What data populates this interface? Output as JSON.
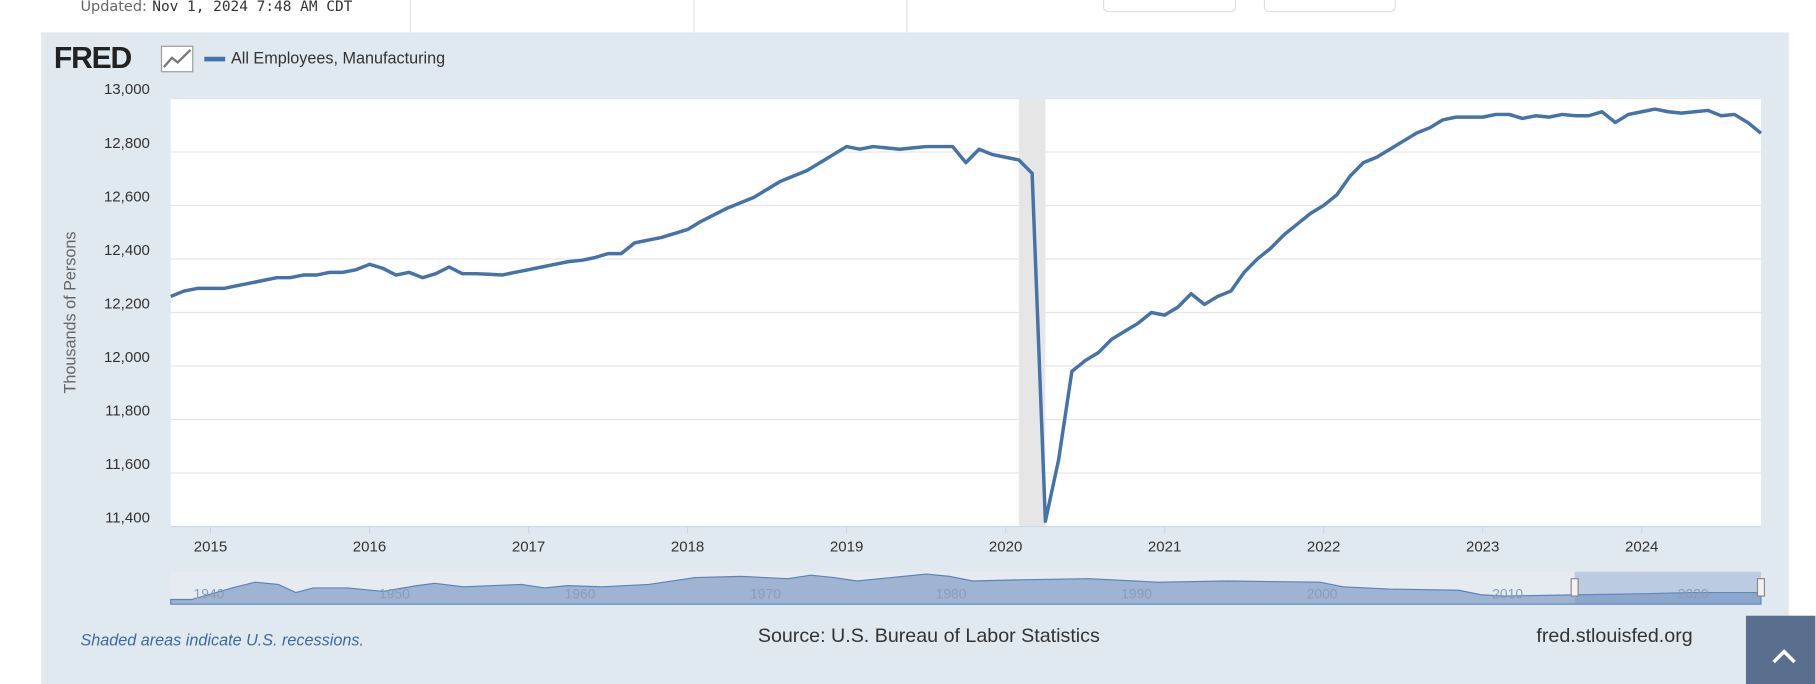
{
  "header": {
    "updated_label": "Updated:",
    "updated": "Nov 1, 2024 7:48 AM CDT"
  },
  "logo": "FRED",
  "chart_data": {
    "type": "line",
    "y_axis_label": "Thousands of Persons",
    "x": [
      "2014-10",
      "2014-11",
      "2014-12",
      "2015-01",
      "2015-02",
      "2015-03",
      "2015-04",
      "2015-05",
      "2015-06",
      "2015-07",
      "2015-08",
      "2015-09",
      "2015-10",
      "2015-11",
      "2015-12",
      "2016-01",
      "2016-02",
      "2016-03",
      "2016-04",
      "2016-05",
      "2016-06",
      "2016-07",
      "2016-08",
      "2016-09",
      "2016-10",
      "2016-11",
      "2016-12",
      "2017-01",
      "2017-02",
      "2017-03",
      "2017-04",
      "2017-05",
      "2017-06",
      "2017-07",
      "2017-08",
      "2017-09",
      "2017-10",
      "2017-11",
      "2017-12",
      "2018-01",
      "2018-02",
      "2018-03",
      "2018-04",
      "2018-05",
      "2018-06",
      "2018-07",
      "2018-08",
      "2018-09",
      "2018-10",
      "2018-11",
      "2018-12",
      "2019-01",
      "2019-02",
      "2019-03",
      "2019-04",
      "2019-05",
      "2019-06",
      "2019-07",
      "2019-08",
      "2019-09",
      "2019-10",
      "2019-11",
      "2019-12",
      "2020-01",
      "2020-02",
      "2020-03",
      "2020-04",
      "2020-05",
      "2020-06",
      "2020-07",
      "2020-08",
      "2020-09",
      "2020-10",
      "2020-11",
      "2020-12",
      "2021-01",
      "2021-02",
      "2021-03",
      "2021-04",
      "2021-05",
      "2021-06",
      "2021-07",
      "2021-08",
      "2021-09",
      "2021-10",
      "2021-11",
      "2021-12",
      "2022-01",
      "2022-02",
      "2022-03",
      "2022-04",
      "2022-05",
      "2022-06",
      "2022-07",
      "2022-08",
      "2022-09",
      "2022-10",
      "2022-11",
      "2022-12",
      "2023-01",
      "2023-02",
      "2023-03",
      "2023-04",
      "2023-05",
      "2023-06",
      "2023-07",
      "2023-08",
      "2023-09",
      "2023-10",
      "2023-11",
      "2023-12",
      "2024-01",
      "2024-02",
      "2024-03",
      "2024-04",
      "2024-05",
      "2024-06",
      "2024-07",
      "2024-08",
      "2024-09",
      "2024-10"
    ],
    "series": [
      {
        "name": "All Employees, Manufacturing",
        "color": "#4572a7",
        "values": [
          12260,
          12280,
          12290,
          12290,
          12290,
          12300,
          12310,
          12320,
          12330,
          12330,
          12340,
          12340,
          12350,
          12350,
          12360,
          12380,
          12365,
          12340,
          12350,
          12330,
          12345,
          12370,
          12345,
          12345,
          12343,
          12340,
          12350,
          12360,
          12370,
          12380,
          12390,
          12395,
          12405,
          12420,
          12420,
          12460,
          12470,
          12480,
          12495,
          12510,
          12540,
          12565,
          12590,
          12610,
          12630,
          12660,
          12690,
          12710,
          12730,
          12760,
          12790,
          12820,
          12810,
          12820,
          12815,
          12810,
          12815,
          12820,
          12820,
          12820,
          12760,
          12810,
          12790,
          12780,
          12770,
          12720,
          11420,
          11650,
          11980,
          12020,
          12050,
          12100,
          12130,
          12160,
          12200,
          12190,
          12220,
          12270,
          12230,
          12260,
          12280,
          12350,
          12400,
          12440,
          12490,
          12530,
          12570,
          12600,
          12640,
          12710,
          12760,
          12780,
          12810,
          12840,
          12870,
          12890,
          12920,
          12930,
          12930,
          12930,
          12940,
          12940,
          12925,
          12935,
          12930,
          12940,
          12935,
          12935,
          12950,
          12910,
          12940,
          12950,
          12960,
          12950,
          12945,
          12950,
          12955,
          12935,
          12940,
          12910,
          12870
        ]
      }
    ],
    "xlim": [
      "2014-10",
      "2024-10"
    ],
    "xticks": [
      2015,
      2016,
      2017,
      2018,
      2019,
      2020,
      2021,
      2022,
      2023,
      2024
    ],
    "ylim": [
      11400,
      13000
    ],
    "yticks": [
      {
        "value": 11400,
        "label": "11,400"
      },
      {
        "value": 11600,
        "label": "11,600"
      },
      {
        "value": 11800,
        "label": "11,800"
      },
      {
        "value": 12000,
        "label": "12,000"
      },
      {
        "value": 12200,
        "label": "12,200"
      },
      {
        "value": 12400,
        "label": "12,400"
      },
      {
        "value": 12600,
        "label": "12,600"
      },
      {
        "value": 12800,
        "label": "12,800"
      },
      {
        "value": 13000,
        "label": "13,000"
      }
    ],
    "grid": true,
    "recessions": [
      {
        "start": "2020-02",
        "end": "2020-04"
      }
    ],
    "navigator_ticks": [
      1940,
      1950,
      1960,
      1970,
      1980,
      1990,
      2000,
      2010,
      2020
    ],
    "note": "Shaded areas indicate U.S. recessions.",
    "source": "Source: U.S. Bureau of Labor Statistics",
    "credit": "fred.stlouisfed.org"
  }
}
